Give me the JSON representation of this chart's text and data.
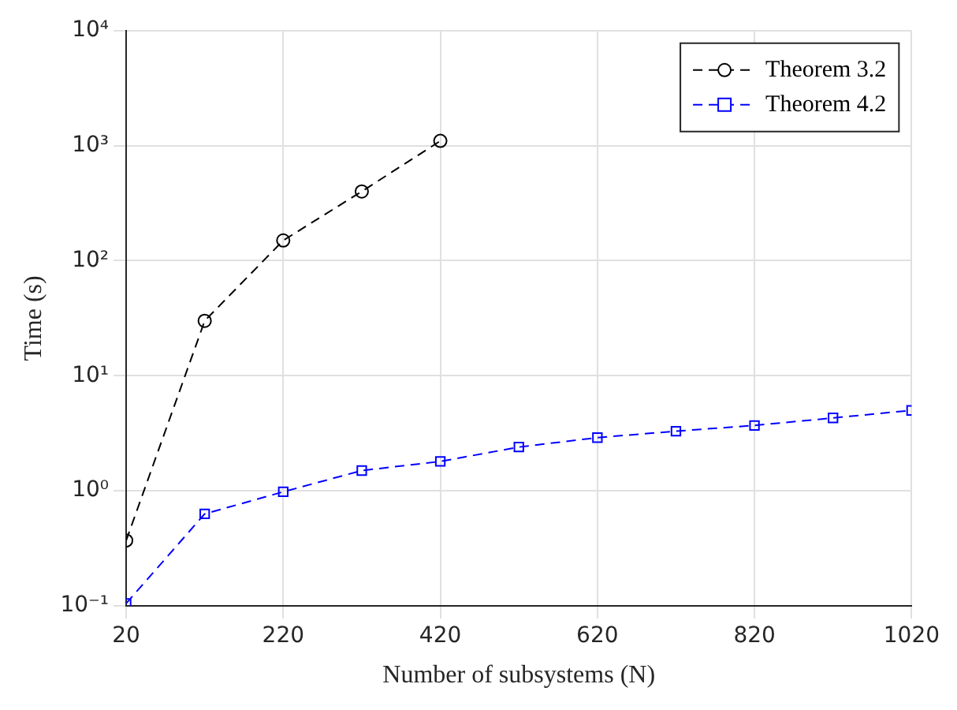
{
  "chart_data": {
    "type": "line",
    "xlabel": "Number of subsystems (N)",
    "ylabel": "Time (s)",
    "log": "y",
    "grid": true,
    "legend": "top right",
    "line_style": "dashed",
    "xlim": [
      20,
      1020
    ],
    "xticks": [
      20,
      220,
      420,
      620,
      820,
      1020
    ],
    "ylim": [
      0.1,
      10000
    ],
    "yticks": [
      {
        "value": 0.1,
        "label": "10⁻¹"
      },
      {
        "value": 1,
        "label": "10⁰"
      },
      {
        "value": 10,
        "label": "10¹"
      },
      {
        "value": 100,
        "label": "10²"
      },
      {
        "value": 1000,
        "label": "10³"
      },
      {
        "value": 10000,
        "label": "10⁴"
      }
    ],
    "series": [
      {
        "name": "Theorem 3.2",
        "color": "#000000",
        "marker": "circle",
        "x": [
          20,
          120,
          220,
          320,
          420
        ],
        "values": [
          0.37,
          30,
          150,
          400,
          1100
        ]
      },
      {
        "name": "Theorem 4.2",
        "color": "#0000ff",
        "marker": "square",
        "x": [
          20,
          120,
          220,
          320,
          420,
          520,
          620,
          720,
          820,
          920,
          1020
        ],
        "values": [
          0.105,
          0.63,
          0.98,
          1.5,
          1.8,
          2.4,
          2.9,
          3.3,
          3.7,
          4.3,
          5.0
        ]
      }
    ]
  }
}
